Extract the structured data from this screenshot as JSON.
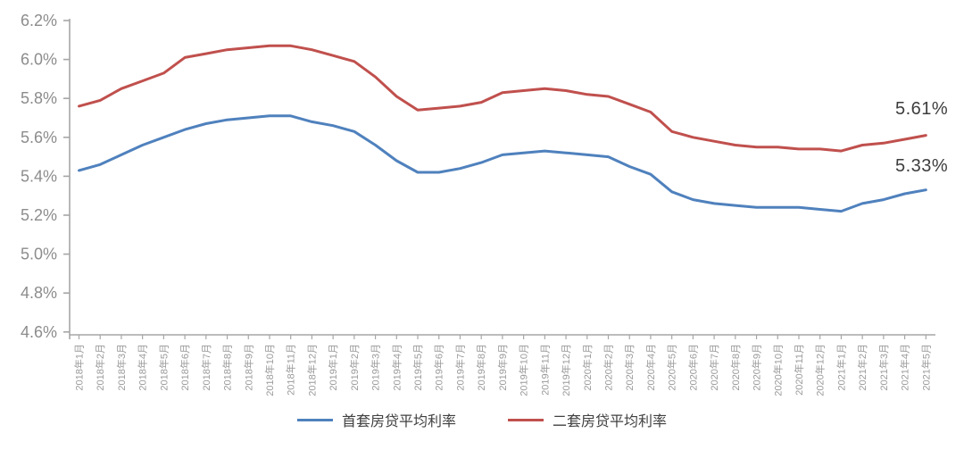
{
  "chart_data": {
    "type": "line",
    "title": "",
    "xlabel": "",
    "ylabel": "",
    "ylim": [
      4.6,
      6.2
    ],
    "ytick_step": 0.2,
    "yticks": [
      6.2,
      6.0,
      5.8,
      5.6,
      5.4,
      5.2,
      5.0,
      4.8,
      4.6
    ],
    "ytick_labels": [
      "6.2%",
      "6.0%",
      "5.8%",
      "5.6%",
      "5.4%",
      "5.2%",
      "5.0%",
      "4.8%",
      "4.6%"
    ],
    "grid": false,
    "legend_position": "bottom",
    "categories": [
      "2018年1月",
      "2018年2月",
      "2018年3月",
      "2018年4月",
      "2018年5月",
      "2018年6月",
      "2018年7月",
      "2018年8月",
      "2018年9月",
      "2018年10月",
      "2018年11月",
      "2018年12月",
      "2019年1月",
      "2019年2月",
      "2019年3月",
      "2019年4月",
      "2019年5月",
      "2019年6月",
      "2019年7月",
      "2019年8月",
      "2019年9月",
      "2019年10月",
      "2019年11月",
      "2019年12月",
      "2020年1月",
      "2020年2月",
      "2020年3月",
      "2020年4月",
      "2020年5月",
      "2020年6月",
      "2020年7月",
      "2020年8月",
      "2020年9月",
      "2020年10月",
      "2020年11月",
      "2020年12月",
      "2021年1月",
      "2021年2月",
      "2021年3月",
      "2021年4月",
      "2021年5月"
    ],
    "series": [
      {
        "name": "首套房贷平均利率",
        "color": "#4f81bd",
        "values": [
          5.43,
          5.46,
          5.51,
          5.56,
          5.6,
          5.64,
          5.67,
          5.69,
          5.7,
          5.71,
          5.71,
          5.68,
          5.66,
          5.63,
          5.56,
          5.48,
          5.42,
          5.42,
          5.44,
          5.47,
          5.51,
          5.52,
          5.53,
          5.52,
          5.51,
          5.5,
          5.45,
          5.41,
          5.32,
          5.28,
          5.26,
          5.25,
          5.24,
          5.24,
          5.24,
          5.23,
          5.22,
          5.26,
          5.28,
          5.31,
          5.33
        ]
      },
      {
        "name": "二套房贷平均利率",
        "color": "#c0504d",
        "values": [
          5.76,
          5.79,
          5.85,
          5.89,
          5.93,
          6.01,
          6.03,
          6.05,
          6.06,
          6.07,
          6.07,
          6.05,
          6.02,
          5.99,
          5.91,
          5.81,
          5.74,
          5.75,
          5.76,
          5.78,
          5.83,
          5.84,
          5.85,
          5.84,
          5.82,
          5.81,
          5.77,
          5.73,
          5.63,
          5.6,
          5.58,
          5.56,
          5.55,
          5.55,
          5.54,
          5.54,
          5.53,
          5.56,
          5.57,
          5.59,
          5.61
        ]
      }
    ],
    "annotations": [
      {
        "text": "5.61%",
        "series": "二套房贷平均利率",
        "x": "2021年5月",
        "value": 5.61
      },
      {
        "text": "5.33%",
        "series": "首套房贷平均利率",
        "x": "2021年5月",
        "value": 5.33
      }
    ]
  },
  "legend": {
    "first_home": "首套房贷平均利率",
    "second_home": "二套房贷平均利率"
  },
  "annotations": {
    "second_home": "5.61%",
    "first_home": "5.33%"
  },
  "colors": {
    "first_home_line": "#4f81bd",
    "second_home_line": "#c0504d",
    "axis": "#a6a6a6",
    "ytick_label": "#8c8c8c",
    "xtick_label": "#9a9a9a",
    "annotation_text": "#3d3d3d",
    "legend_text": "#404040",
    "background": "#ffffff"
  }
}
